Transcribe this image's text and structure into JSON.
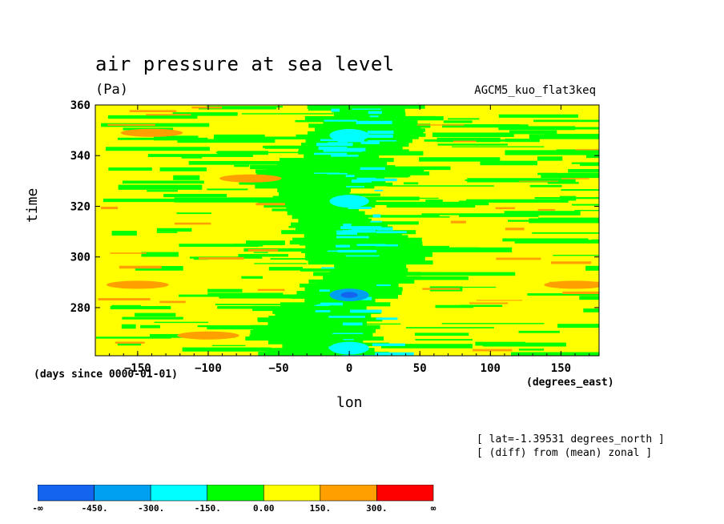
{
  "title": "air pressure at sea level",
  "units": "(Pa)",
  "run_name": "AGCM5_kuo_flat3keq",
  "notes": [
    "[ lat=-1.39531 degrees_north ]",
    "[ (diff) from (mean) zonal ]"
  ],
  "colorbar": {
    "labels": [
      "-∞",
      "-450.",
      "-300.",
      "-150.",
      "0.00",
      "150.",
      "300.",
      "∞"
    ],
    "colors": [
      "#1464f0",
      "#00a0f0",
      "#00ffff",
      "#00ff00",
      "#ffff00",
      "#ffa000",
      "#ff0000"
    ]
  },
  "chart_data": {
    "type": "heatmap",
    "title": "air pressure at sea level",
    "subtitle": "(Pa)",
    "xlabel": "lon",
    "xunits": "(degrees_east)",
    "ylabel": "time",
    "yunits": "(days since 0000-01-01)",
    "xlim": [
      -180,
      177
    ],
    "ylim": [
      261,
      360
    ],
    "xticks": [
      -150,
      -100,
      -50,
      0,
      50,
      100,
      150
    ],
    "xtick_labels": [
      "−150",
      "−100",
      "−50",
      "0",
      "50",
      "100",
      "150"
    ],
    "yticks": [
      280,
      300,
      320,
      340,
      360
    ],
    "ytick_labels": [
      "280",
      "300",
      "320",
      "340",
      "360"
    ],
    "levels": [
      "-∞",
      -450,
      -300,
      -150,
      0,
      150,
      300,
      "∞"
    ],
    "band_colors": [
      "#1464f0",
      "#00a0f0",
      "#00ffff",
      "#00ff00",
      "#ffff00",
      "#ffa000",
      "#ff0000"
    ],
    "background_level": "0 to 150",
    "features": [
      {
        "lon": 0,
        "time": 285,
        "level": "-450 to -300"
      },
      {
        "lon": 0,
        "time": 322,
        "level": "-300 to -150"
      },
      {
        "lon": 0,
        "time": 348,
        "level": "-300 to -150"
      },
      {
        "lon": 0,
        "time": 264,
        "level": "-300 to -150"
      },
      {
        "lon": -140,
        "time": 349,
        "level": "150 to 300"
      },
      {
        "lon": -150,
        "time": 289,
        "level": "150 to 300"
      },
      {
        "lon": 160,
        "time": 289,
        "level": "150 to 300"
      },
      {
        "lon": -100,
        "time": 269,
        "level": "150 to 300"
      },
      {
        "lon": -70,
        "time": 331,
        "level": "150 to 300"
      }
    ]
  }
}
